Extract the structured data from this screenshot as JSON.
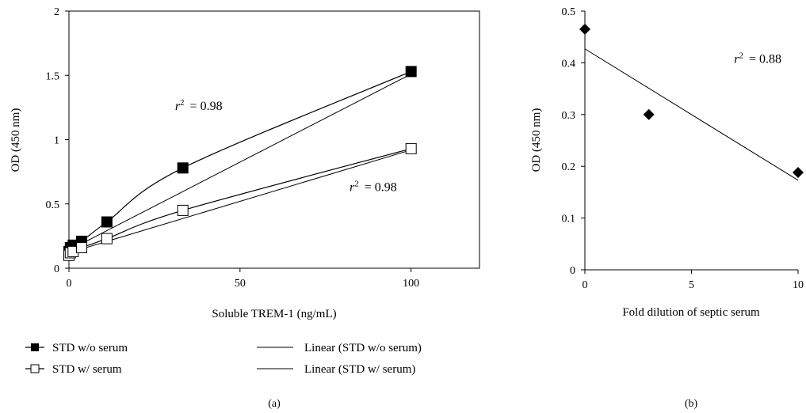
{
  "chart_data": [
    {
      "panel_label": "(a)",
      "type": "line",
      "xlabel": "Soluble TREM-1 (ng/mL)",
      "ylabel": "OD (450 nm)",
      "xlim": [
        0,
        120
      ],
      "ylim": [
        0,
        2
      ],
      "xticks": [
        "0",
        "50",
        "100"
      ],
      "yticks": [
        "0",
        "0.5",
        "1",
        "1.5",
        "2"
      ],
      "grid": false,
      "legend_position": "bottom",
      "series": [
        {
          "name": "STD w/o serum",
          "marker": "filled-square",
          "x": [
            0,
            0.41,
            1.23,
            3.7,
            11.1,
            33.3,
            100
          ],
          "y": [
            0.13,
            0.16,
            0.18,
            0.21,
            0.36,
            0.78,
            1.53
          ]
        },
        {
          "name": "STD w/ serum",
          "marker": "open-square",
          "x": [
            0,
            0.41,
            1.23,
            3.7,
            11.1,
            33.3,
            100
          ],
          "y": [
            0.1,
            0.12,
            0.13,
            0.16,
            0.23,
            0.45,
            0.93
          ]
        }
      ],
      "trendlines": [
        {
          "name": "Linear (STD w/o serum)",
          "x": [
            0,
            100
          ],
          "y": [
            0.14,
            1.51
          ]
        },
        {
          "name": "Linear (STD w/ serum)",
          "x": [
            0,
            100
          ],
          "y": [
            0.12,
            0.92
          ]
        }
      ],
      "annotations": [
        {
          "label": "r",
          "sup": "2",
          "text": " = 0.98",
          "x": 31,
          "y": 1.23
        },
        {
          "label": "r",
          "sup": "2",
          "text": " = 0.98",
          "x": 82,
          "y": 0.6
        }
      ]
    },
    {
      "panel_label": "(b)",
      "type": "scatter",
      "xlabel": "Fold dilution of septic serum",
      "ylabel": "OD (450 nm)",
      "xlim": [
        0,
        10
      ],
      "ylim": [
        0,
        0.5
      ],
      "xticks": [
        "0",
        "5",
        "10"
      ],
      "yticks": [
        "0",
        "0.1",
        "0.2",
        "0.3",
        "0.4",
        "0.5"
      ],
      "grid": false,
      "series": [
        {
          "marker": "filled-diamond",
          "x": [
            0,
            3,
            10
          ],
          "y": [
            0.465,
            0.3,
            0.188
          ]
        }
      ],
      "trendlines": [
        {
          "x": [
            0,
            10
          ],
          "y": [
            0.427,
            0.173
          ]
        }
      ],
      "annotations": [
        {
          "label": "r",
          "sup": "2",
          "text": " = 0.88",
          "x": 7,
          "y": 0.4
        }
      ]
    }
  ]
}
